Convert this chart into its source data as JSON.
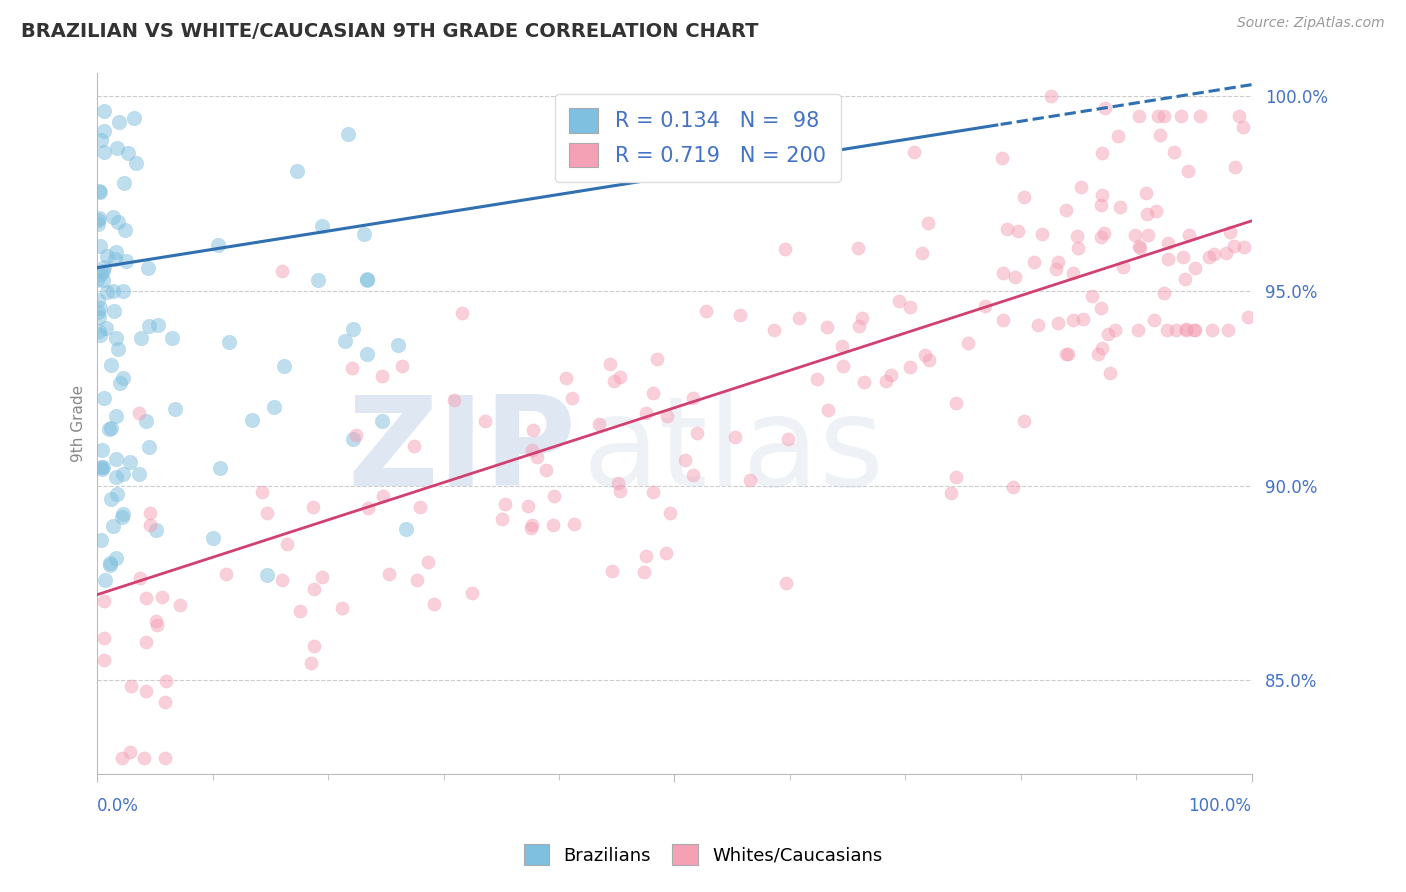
{
  "title": "BRAZILIAN VS WHITE/CAUCASIAN 9TH GRADE CORRELATION CHART",
  "source": "Source: ZipAtlas.com",
  "ylabel": "9th Grade",
  "R_blue": 0.134,
  "N_blue": 98,
  "R_pink": 0.719,
  "N_pink": 200,
  "blue_color": "#7fbfdf",
  "pink_color": "#f4a0b5",
  "blue_line_color": "#3070b0",
  "pink_line_color": "#d04070",
  "watermark_zip": "ZIP",
  "watermark_atlas": "atlas",
  "background_color": "#ffffff",
  "title_color": "#333333",
  "axis_label_color": "#4472c4",
  "legend_text_color": "#4472c4",
  "seed": 42,
  "xlim": [
    0.0,
    1.0
  ],
  "ylim": [
    0.826,
    1.006
  ],
  "yticks": [
    0.85,
    0.9,
    0.95,
    1.0
  ],
  "ytick_labels": [
    "85.0%",
    "90.0%",
    "95.0%",
    "100.0%"
  ],
  "grid_color": "#cccccc",
  "grid_style": "--",
  "blue_line_y0": 0.956,
  "blue_line_y1": 1.003,
  "pink_line_y0": 0.872,
  "pink_line_y1": 0.968
}
